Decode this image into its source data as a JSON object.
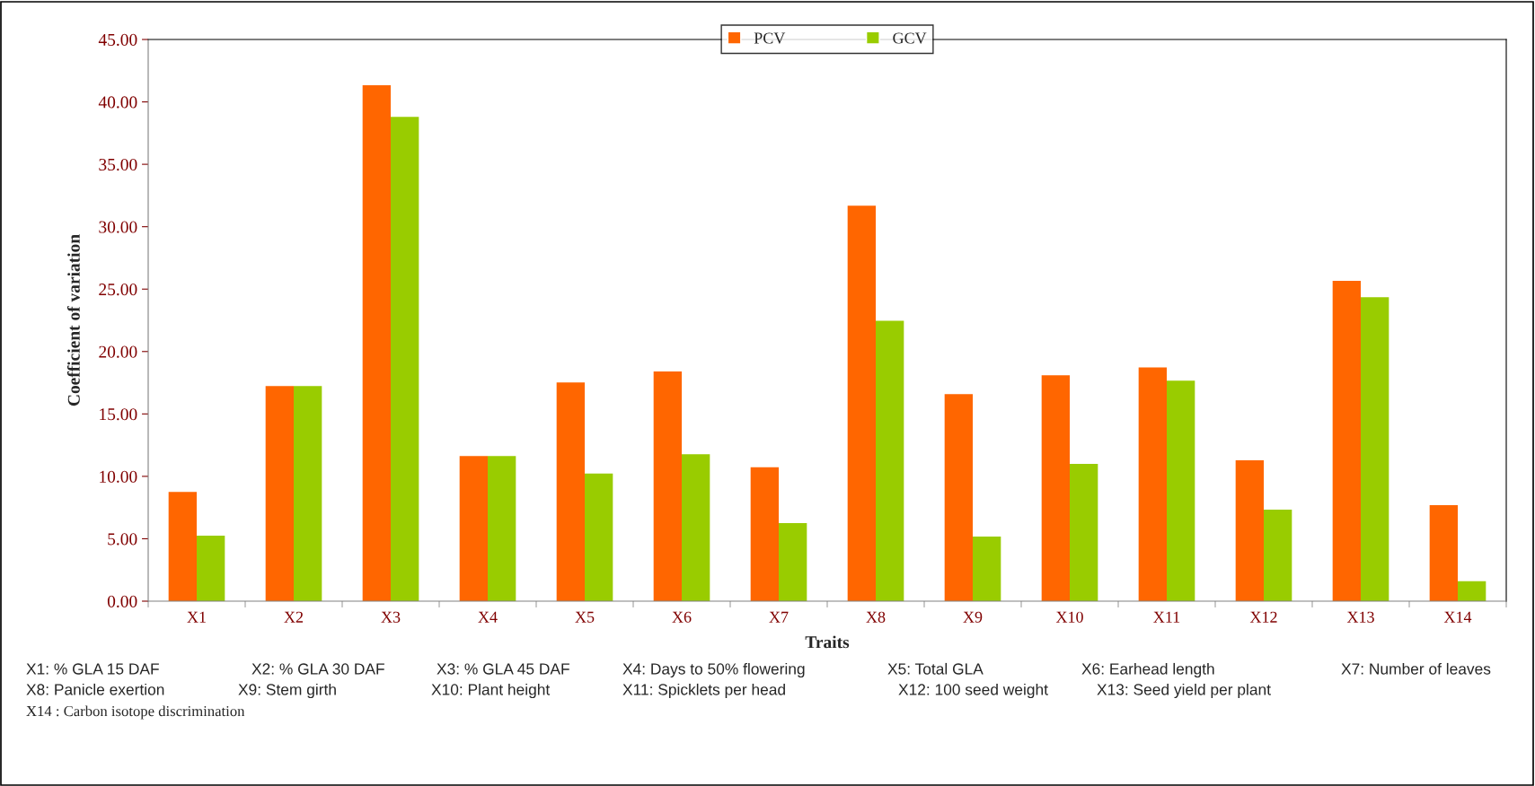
{
  "chart_data": {
    "type": "bar",
    "xlabel": "Traits",
    "ylabel": "Coefficient of variation",
    "categories": [
      "X1",
      "X2",
      "X3",
      "X4",
      "X5",
      "X6",
      "X7",
      "X8",
      "X9",
      "X10",
      "X11",
      "X12",
      "X13",
      "X14"
    ],
    "series": [
      {
        "name": "PCV",
        "color": "#ff6600",
        "values": [
          8.76,
          17.24,
          41.33,
          11.62,
          17.53,
          18.41,
          10.72,
          31.68,
          16.58,
          18.09,
          18.73,
          11.28,
          25.67,
          7.69
        ]
      },
      {
        "name": "GCV",
        "color": "#99cc00",
        "values": [
          5.24,
          17.24,
          38.8,
          11.62,
          10.23,
          11.77,
          6.25,
          22.47,
          5.18,
          11.0,
          17.66,
          7.33,
          24.35,
          1.6
        ]
      }
    ],
    "ylim": [
      0,
      45
    ],
    "yticks": [
      {
        "value": 0,
        "label": "0.00"
      },
      {
        "value": 5,
        "label": "5.00"
      },
      {
        "value": 10,
        "label": "10.00"
      },
      {
        "value": 15,
        "label": "15.00"
      },
      {
        "value": 20,
        "label": "20.00"
      },
      {
        "value": 25,
        "label": "25.00"
      },
      {
        "value": 30,
        "label": "30.00"
      },
      {
        "value": 35,
        "label": "35.00"
      },
      {
        "value": 40,
        "label": "40.00"
      },
      {
        "value": 45,
        "label": "45.00"
      }
    ],
    "grid": false,
    "legend": "top",
    "annotations": [
      "X1: % GLA 15 DAF",
      "X2: % GLA 30 DAF",
      "X3: % GLA 45 DAF",
      "X4: Days to 50% flowering",
      "X5: Total GLA",
      "X6: Earhead length",
      "X7: Number of leaves",
      "X8: Panicle exertion",
      "X9: Stem girth",
      "X10: Plant height",
      "X11: Spicklets per head",
      "X12: 100 seed weight",
      "X13: Seed yield per plant",
      "X14 : Carbon isotope discrimination"
    ]
  }
}
